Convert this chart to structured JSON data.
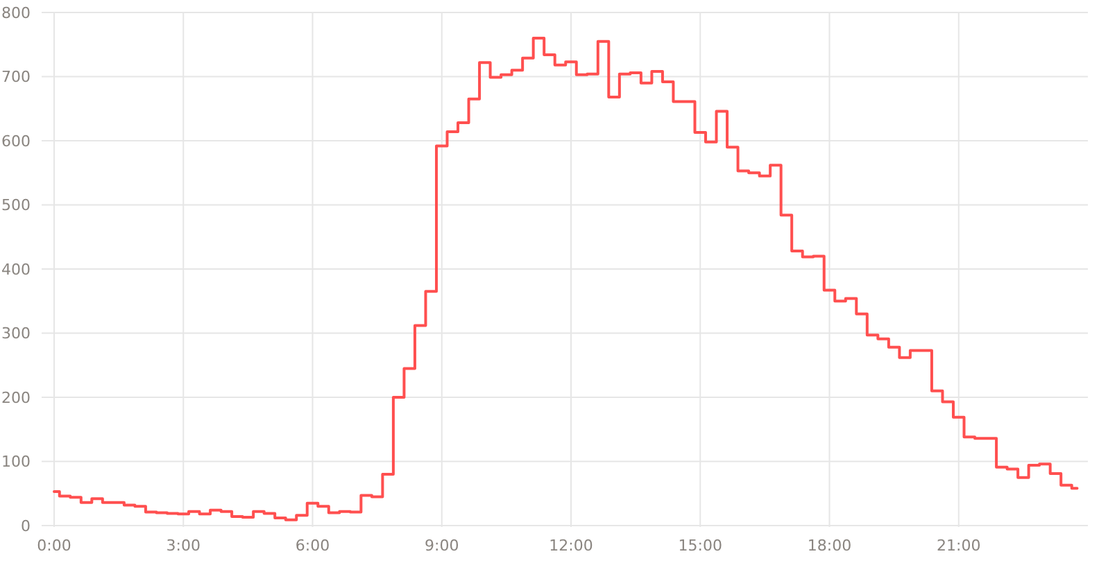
{
  "chart_data": {
    "type": "step",
    "x": [
      0,
      0.25,
      0.5,
      0.75,
      1,
      1.25,
      1.5,
      1.75,
      2,
      2.25,
      2.5,
      2.75,
      3,
      3.25,
      3.5,
      3.75,
      4,
      4.25,
      4.5,
      4.75,
      5,
      5.25,
      5.5,
      5.75,
      6,
      6.25,
      6.5,
      6.75,
      7,
      7.25,
      7.5,
      7.75,
      8,
      8.25,
      8.5,
      8.75,
      9,
      9.25,
      9.5,
      9.75,
      10,
      10.25,
      10.5,
      10.75,
      11,
      11.25,
      11.5,
      11.75,
      12,
      12.25,
      12.5,
      12.75,
      13,
      13.25,
      13.5,
      13.75,
      14,
      14.25,
      14.5,
      14.75,
      15,
      15.25,
      15.5,
      15.75,
      16,
      16.25,
      16.5,
      16.75,
      17,
      17.25,
      17.5,
      17.75,
      18,
      18.25,
      18.5,
      18.75,
      19,
      19.25,
      19.5,
      19.75,
      20,
      20.25,
      20.5,
      20.75,
      21,
      21.25,
      21.5,
      21.75,
      22,
      22.25,
      22.5,
      22.75,
      23,
      23.25,
      23.5,
      23.75
    ],
    "series": [
      {
        "color": "#ff4f4f",
        "values": [
          53,
          46,
          44,
          36,
          42,
          36,
          36,
          32,
          30,
          21,
          20,
          19,
          18,
          22,
          18,
          24,
          22,
          14,
          13,
          22,
          19,
          12,
          9,
          16,
          35,
          30,
          20,
          22,
          21,
          47,
          45,
          80,
          200,
          245,
          312,
          365,
          592,
          614,
          628,
          665,
          722,
          699,
          703,
          710,
          729,
          760,
          734,
          718,
          723,
          703,
          704,
          755,
          668,
          704,
          706,
          690,
          708,
          692,
          661,
          661,
          613,
          598,
          646,
          590,
          553,
          550,
          545,
          562,
          484,
          428,
          419,
          420,
          367,
          350,
          354,
          330,
          297,
          291,
          278,
          262,
          273,
          273,
          210,
          193,
          169,
          138,
          136,
          136,
          91,
          88,
          75,
          94,
          96,
          81,
          63,
          58
        ]
      }
    ],
    "xlim": [
      0,
      24
    ],
    "xticks": [
      {
        "value": 0,
        "label": "0:00"
      },
      {
        "value": 3,
        "label": "3:00"
      },
      {
        "value": 6,
        "label": "6:00"
      },
      {
        "value": 9,
        "label": "9:00"
      },
      {
        "value": 12,
        "label": "12:00"
      },
      {
        "value": 15,
        "label": "15:00"
      },
      {
        "value": 18,
        "label": "18:00"
      },
      {
        "value": 21,
        "label": "21:00"
      }
    ],
    "ylim": [
      0,
      800
    ],
    "yticks": [
      0,
      100,
      200,
      300,
      400,
      500,
      600,
      700,
      800
    ],
    "grid": true
  }
}
